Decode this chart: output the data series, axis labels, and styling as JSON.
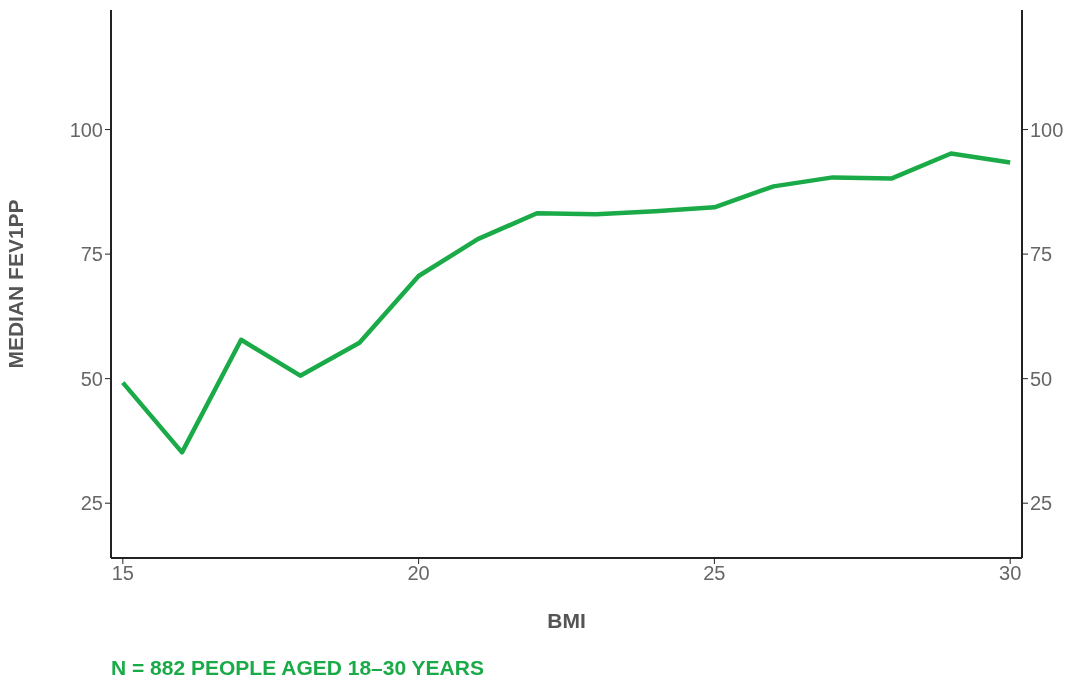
{
  "chart_data": {
    "type": "line",
    "xlabel": "BMI",
    "ylabel": "MEDIAN FEV1PP",
    "annotations": [
      "N = 882 PEOPLE AGED 18–30 YEARS"
    ],
    "x": [
      15,
      16,
      17,
      18,
      19,
      20,
      21,
      22,
      23,
      24,
      25,
      26,
      27,
      28,
      29,
      30
    ],
    "series": [
      {
        "color": "#1aab48",
        "values": [
          49.2,
          35.2,
          57.8,
          50.6,
          57.2,
          70.6,
          78,
          83.2,
          83,
          83.6,
          84.4,
          88.6,
          90.4,
          90.2,
          95.2,
          93.4
        ]
      }
    ],
    "xlim": [
      14.8,
      30.2
    ],
    "xticks": [
      15,
      20,
      25,
      30
    ],
    "ylim": [
      14,
      124
    ],
    "yticks": [
      25,
      50,
      75,
      100
    ],
    "y2lim": [
      14,
      124
    ],
    "y2ticks": [
      25,
      50,
      75,
      100
    ],
    "marker": "none",
    "line_style": "solid",
    "grid": false
  }
}
